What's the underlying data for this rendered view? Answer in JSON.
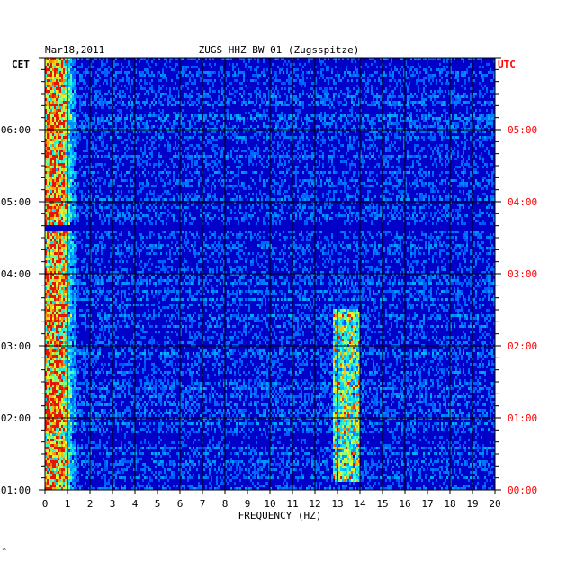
{
  "chart_data": {
    "type": "heatmap",
    "title": "ZUGS HHZ BW 01 (Zugsspitze)",
    "date": "Mar18,2011",
    "left_tz": "CET",
    "right_tz": "UTC",
    "xlabel": "FREQUENCY (HZ)",
    "xlim": [
      0,
      20
    ],
    "x_ticks": [
      "0",
      "1",
      "2",
      "3",
      "4",
      "5",
      "6",
      "7",
      "8",
      "9",
      "10",
      "11",
      "12",
      "13",
      "14",
      "15",
      "16",
      "17",
      "18",
      "19",
      "20"
    ],
    "ylim_hours": [
      1,
      7
    ],
    "y_ticks_left": [
      {
        "h": 6,
        "label": "06:00"
      },
      {
        "h": 5,
        "label": "05:00"
      },
      {
        "h": 4,
        "label": "04:00"
      },
      {
        "h": 3,
        "label": "03:00"
      },
      {
        "h": 2,
        "label": "02:00"
      },
      {
        "h": 1,
        "label": "01:00"
      }
    ],
    "y_ticks_right": [
      {
        "h": 6,
        "label": "05:00"
      },
      {
        "h": 5,
        "label": "04:00"
      },
      {
        "h": 4,
        "label": "03:00"
      },
      {
        "h": 3,
        "label": "02:00"
      },
      {
        "h": 2,
        "label": "01:00"
      },
      {
        "h": 1,
        "label": "00:00"
      }
    ],
    "grid": true,
    "colors": {
      "background": "#0000c8",
      "grid": "#000000",
      "left_labels": "#000000",
      "right_labels": "#ff0000"
    },
    "features": [
      {
        "name": "low-frequency noise band",
        "x_range": [
          0,
          0.8
        ],
        "intensity": "high"
      },
      {
        "name": "tremor band",
        "x_range": [
          12.8,
          14.0
        ],
        "y_hours": [
          1.1,
          3.5
        ],
        "intensity": "medium"
      },
      {
        "name": "gap line",
        "y_hour": 4.63
      }
    ],
    "footer_mark": "*"
  }
}
